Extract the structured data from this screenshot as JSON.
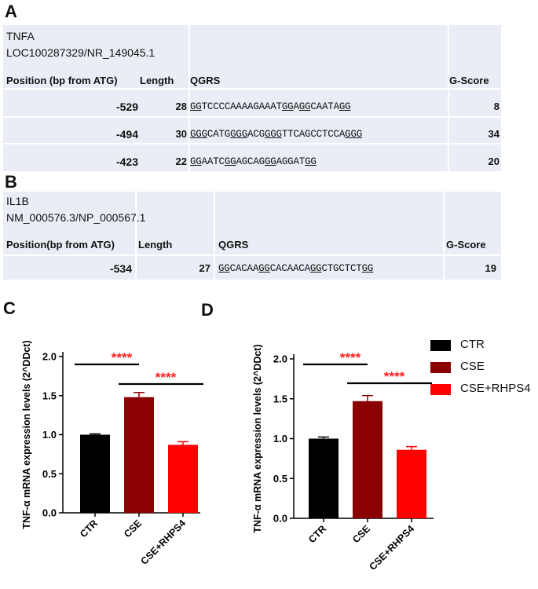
{
  "panels": {
    "a": "A",
    "b": "B",
    "c": "C",
    "d": "D"
  },
  "table_a": {
    "gene": "TNFA",
    "accession": "LOC100287329/NR_149045.1",
    "headers": {
      "position": "Position  (bp from ATG)",
      "length": "Length",
      "qgrs": "QGRS",
      "gscore": "G-Score"
    },
    "rows": [
      {
        "position": "-529",
        "length": "28",
        "seq": [
          [
            "u",
            "GG"
          ],
          [
            "t",
            "TCCCCAAAAGAAAT"
          ],
          [
            "u",
            "GG"
          ],
          [
            "t",
            "A"
          ],
          [
            "u",
            "GG"
          ],
          [
            "t",
            "CAATA"
          ],
          [
            "u",
            "GG"
          ]
        ],
        "gscore": "8"
      },
      {
        "position": "-494",
        "length": "30",
        "seq": [
          [
            "u",
            "GGG"
          ],
          [
            "t",
            "CATG"
          ],
          [
            "u",
            "GGG"
          ],
          [
            "t",
            "ACG"
          ],
          [
            "u",
            "GGG"
          ],
          [
            "t",
            "TTCAGCCTCCA"
          ],
          [
            "u",
            "GGG"
          ]
        ],
        "gscore": "34"
      },
      {
        "position": "-423",
        "length": "22",
        "seq": [
          [
            "u",
            "GG"
          ],
          [
            "t",
            "AATC"
          ],
          [
            "u",
            "GG"
          ],
          [
            "t",
            "AGCAG"
          ],
          [
            "u",
            "GG"
          ],
          [
            "t",
            "AGGAT"
          ],
          [
            "u",
            "GG"
          ]
        ],
        "gscore": "20"
      }
    ]
  },
  "table_b": {
    "gene": "IL1B",
    "accession": "NM_000576.3/NP_000567.1",
    "headers": {
      "position": "Position(bp from ATG)",
      "length": "Length",
      "qgrs": "QGRS",
      "gscore": "G-Score"
    },
    "rows": [
      {
        "position": "-534",
        "length": "27",
        "seq": [
          [
            "u",
            "GG"
          ],
          [
            "t",
            "CACAA"
          ],
          [
            "u",
            "GG"
          ],
          [
            "t",
            "CACAACA"
          ],
          [
            "u",
            "GG"
          ],
          [
            "t",
            "CTGCTCT"
          ],
          [
            "u",
            "GG"
          ]
        ],
        "gscore": "19"
      }
    ]
  },
  "legend": [
    {
      "label": "CTR",
      "color": "#000000"
    },
    {
      "label": "CSE",
      "color": "#8b0000"
    },
    {
      "label": "CSE+RHPS4",
      "color": "#ff0000"
    }
  ],
  "chart_data": [
    {
      "panel": "C",
      "type": "bar",
      "categories": [
        "CTR",
        "CSE",
        "CSE+RHPS4"
      ],
      "values": [
        1.0,
        1.48,
        0.87
      ],
      "errors": [
        0.01,
        0.06,
        0.04
      ],
      "colors": [
        "#000000",
        "#8b0000",
        "#ff0000"
      ],
      "ylabel": "TNF-α mRNA expression levels (2^DDct)",
      "ylim": [
        0,
        2.0
      ],
      "yticks": [
        "0.0",
        "0.5",
        "1.0",
        "1.5",
        "2.0"
      ],
      "significance": [
        {
          "from": 0,
          "to": 1,
          "label": "****"
        },
        {
          "from": 1,
          "to": 2,
          "label": "****"
        }
      ]
    },
    {
      "panel": "D",
      "type": "bar",
      "categories": [
        "CTR",
        "CSE",
        "CSE+RHPS4"
      ],
      "values": [
        1.0,
        1.47,
        0.86
      ],
      "errors": [
        0.02,
        0.07,
        0.04
      ],
      "colors": [
        "#000000",
        "#8b0000",
        "#ff0000"
      ],
      "ylabel": "TNF-α mRNA expression levels (2^DDct)",
      "ylim": [
        0,
        2.0
      ],
      "yticks": [
        "0.0",
        "0.5",
        "1.0",
        "1.5",
        "2.0"
      ],
      "significance": [
        {
          "from": 0,
          "to": 1,
          "label": "****"
        },
        {
          "from": 1,
          "to": 2,
          "label": "****"
        }
      ]
    }
  ]
}
